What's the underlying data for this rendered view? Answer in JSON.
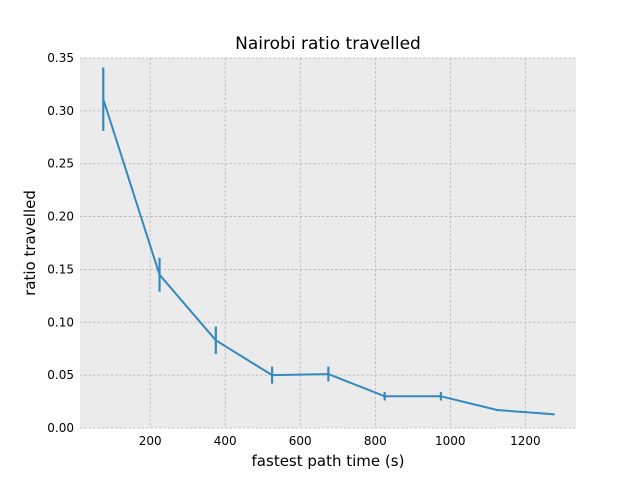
{
  "chart_data": {
    "type": "line",
    "title": "Nairobi ratio travelled",
    "xlabel": "fastest path time (s)",
    "ylabel": "ratio travelled",
    "xlim": [
      13,
      1335
    ],
    "ylim": [
      0,
      0.35
    ],
    "xticks": [
      200,
      400,
      600,
      800,
      1000,
      1200
    ],
    "yticks": [
      0.0,
      0.05,
      0.1,
      0.15,
      0.2,
      0.25,
      0.3,
      0.35
    ],
    "xtick_labels": [
      "200",
      "400",
      "600",
      "800",
      "1000",
      "1200"
    ],
    "ytick_labels": [
      "0.00",
      "0.05",
      "0.10",
      "0.15",
      "0.20",
      "0.25",
      "0.30",
      "0.35"
    ],
    "grid": true,
    "colors": {
      "background": "#ebebeb",
      "grid": "#b0b0b0",
      "series": "#348abd"
    },
    "series": [
      {
        "x": [
          75,
          225,
          375,
          525,
          675,
          825,
          975,
          1125,
          1275
        ],
        "y": [
          0.311,
          0.145,
          0.083,
          0.05,
          0.051,
          0.03,
          0.03,
          0.017,
          0.013
        ],
        "yerr": [
          0.03,
          0.016,
          0.013,
          0.008,
          0.007,
          0.004,
          0.004,
          0.001,
          0.001
        ]
      }
    ]
  }
}
